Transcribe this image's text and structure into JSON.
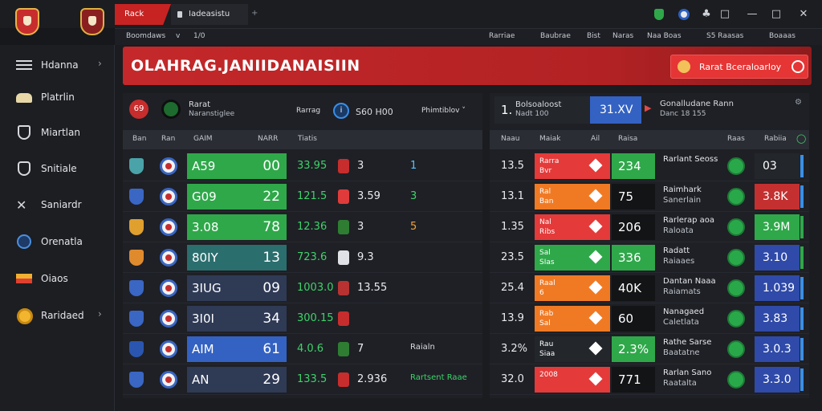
{
  "titlebar": {
    "tab_active": "Rack",
    "tab_second": "Iadeasistu",
    "tab_plus": "+",
    "controls": [
      "shield",
      "account",
      "pin",
      "restore",
      "minimize",
      "maximize",
      "close"
    ]
  },
  "subbar": {
    "left": [
      "Boomdaws",
      "v",
      "1/0"
    ],
    "right": [
      "Rarriae",
      "Baubrae",
      "Bist",
      "Naras",
      "Naa Boas",
      "S5 Raasas",
      "Boaaas"
    ]
  },
  "sidebar": {
    "items": [
      {
        "label": "Hdanna",
        "icon": "menu-icon",
        "chevron": "›"
      },
      {
        "label": "Platrlin",
        "icon": "hat-icon"
      },
      {
        "label": "Miartlan",
        "icon": "heart-shield-icon"
      },
      {
        "label": "Snitiale",
        "icon": "badge-icon"
      },
      {
        "label": "Saniardr",
        "icon": "crossed-swords-icon"
      },
      {
        "label": "Orenatla",
        "icon": "globe-icon"
      },
      {
        "label": "Oiaos",
        "icon": "flag-icon"
      },
      {
        "label": "Raridaed",
        "icon": "coin-icon",
        "chevron": "›"
      }
    ]
  },
  "banner": {
    "title": "OLAHRAG.JANIIDANAISIIN",
    "button_label": "Rarat Bceraloarloy"
  },
  "left_panel": {
    "match_code": "69",
    "team_name": "Rarat",
    "team_sub": "Naranstiglee",
    "label_mid": "Rarrag",
    "score_info": "S60 H00",
    "filter_label": "Phimtiblov",
    "columns": [
      "Ban",
      "Ran",
      "GAIM",
      "NARR",
      "Tiatis"
    ],
    "rows": [
      {
        "a": "A59",
        "b": "00",
        "cell_color": "#2fa84a",
        "g": "33.95",
        "score": "3",
        "extra": "1",
        "extra_color": "#57c4ff",
        "flag": "#c72d2d",
        "badge": "#4aa3a8"
      },
      {
        "a": "G09",
        "b": "22",
        "cell_color": "#2fa84a",
        "g": "121.5",
        "score": "3.59",
        "extra": "3",
        "extra_color": "#3ed36a",
        "flag": "#e03b3b",
        "badge": "#3a66c4"
      },
      {
        "a": "3.08",
        "b": "78",
        "cell_color": "#2fa84a",
        "g": "12.36",
        "score": "3",
        "extra": "5",
        "extra_color": "#f0a23a",
        "flag": "#2e7d32",
        "badge": "#e0a02e"
      },
      {
        "a": "80IY",
        "b": "13",
        "cell_color": "#2b6e6e",
        "g": "723.6",
        "score": "9.3",
        "extra": "",
        "extra_color": "#57c4ff",
        "flag": "#dfe1e6",
        "badge": "#e08a2e"
      },
      {
        "a": "3IUG",
        "b": "09",
        "cell_color": "#2f3a55",
        "g": "1003.0",
        "score": "13.55",
        "extra": "",
        "extra_color": "#57c4ff",
        "flag": "#b83232",
        "badge": "#3a66c4"
      },
      {
        "a": "3I0I",
        "b": "34",
        "cell_color": "#2f3a55",
        "g": "300.15",
        "score": "",
        "extra": "",
        "extra_color": "#57c4ff",
        "flag": "#c72d2d",
        "badge": "#3a66c4"
      },
      {
        "a": "AIM",
        "b": "61",
        "cell_color": "#3462c3",
        "g": "4.0.6",
        "score": "7",
        "extra": "Raialn",
        "extra_color": "#dadce1",
        "flag": "#2e7d32",
        "badge": "#2a56b0"
      },
      {
        "a": "AN",
        "b": "29",
        "cell_color": "#2f3a55",
        "g": "133.5",
        "score": "2.936",
        "extra": "Rartsent Raae",
        "extra_color": "#3ed36a",
        "flag": "#c72d2d",
        "badge": "#3a66c4"
      }
    ]
  },
  "right_panel": {
    "top": {
      "rank": "1.",
      "title": "Bolsoaloost",
      "sub": "Nadt 100",
      "blue_value": "31.XV",
      "right_title": "Gonalludane Rann",
      "right_sub": "Danc 18 155"
    },
    "columns": [
      "Naau",
      "Maiak",
      "Ail",
      "Raisa",
      "Raas",
      "Rabiia"
    ],
    "rows": [
      {
        "odd": "13.5",
        "l1": "Rarra",
        "l2": "Bvr",
        "box1_color": "#e43a3a",
        "box2": "234",
        "box2_color": "#2fa84a",
        "nm": "Rarlant Seoss",
        "nm2": "",
        "box3": "03",
        "box3_color": "#23262b",
        "edge": "#3a8ee8"
      },
      {
        "odd": "13.1",
        "l1": "Ral",
        "l2": "Ban",
        "box1_color": "#f07a24",
        "box2": "75",
        "box2_color": "#121416",
        "nm": "Raimhark",
        "nm2": "Sanerlain",
        "box3": "3.8K",
        "box3_color": "#c43030",
        "edge": "#3a8ee8"
      },
      {
        "odd": "1.35",
        "l1": "Nal",
        "l2": "Ribs",
        "box1_color": "#e43a3a",
        "box2": "206",
        "box2_color": "#121416",
        "nm": "Rarlerap aoa",
        "nm2": "Raloata",
        "box3": "3.9M",
        "box3_color": "#2fa84a",
        "edge": "#2fa84a"
      },
      {
        "odd": "23.5",
        "l1": "Sal",
        "l2": "SIas",
        "box1_color": "#2fa84a",
        "box2": "336",
        "box2_color": "#2fa84a",
        "nm": "Radatt",
        "nm2": "Raiaaes",
        "box3": "3.10",
        "box3_color": "#2f4aa8",
        "edge": "#2fa84a"
      },
      {
        "odd": "25.4",
        "l1": "Raal",
        "l2": "6",
        "box1_color": "#f07a24",
        "box2": "40K",
        "box2_color": "#121416",
        "nm": "Dantan Naaa",
        "nm2": "Raiamats",
        "box3": "1.039",
        "box3_color": "#2f4aa8",
        "edge": "#3a8ee8"
      },
      {
        "odd": "13.9",
        "l1": "Rab",
        "l2": "Sal",
        "box1_color": "#f07a24",
        "box2": "60",
        "box2_color": "#121416",
        "nm": "Nanagaed",
        "nm2": "Caletlata",
        "box3": "3.83",
        "box3_color": "#2f4aa8",
        "edge": "#3a8ee8"
      },
      {
        "odd": "3.2%",
        "l1": "Rau",
        "l2": "Siaa",
        "box1_color": "#23262b",
        "box2": "2.3%",
        "box2_color": "#2fa84a",
        "nm": "Rathe Sarse",
        "nm2": "Baatatne",
        "box3": "3.0.3",
        "box3_color": "#2f4aa8",
        "edge": "#3a8ee8"
      },
      {
        "odd": "32.0",
        "l1": "2008",
        "l2": "",
        "box1_color": "#e43a3a",
        "box2": "771",
        "box2_color": "#121416",
        "nm": "Rarlan Sano",
        "nm2": "Raatalta",
        "box3": "3.3.0",
        "box3_color": "#2f4aa8",
        "edge": "#3a8ee8"
      }
    ]
  }
}
